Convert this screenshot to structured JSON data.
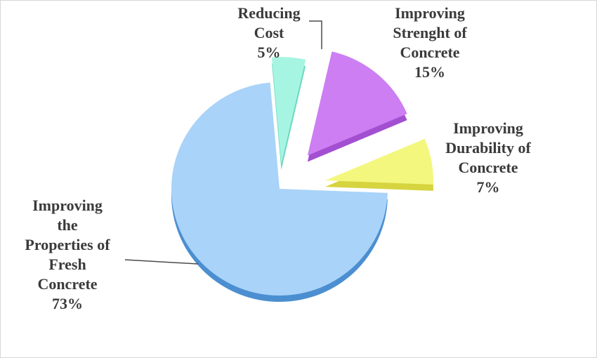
{
  "chart_data": {
    "type": "pie",
    "style": "3d-exploded",
    "slices": [
      {
        "label_lines": [
          "Reducing",
          "Cost"
        ],
        "percent_label": "5%",
        "value": 5,
        "color": "#a6f5e2",
        "side_color": "#6fd9c0"
      },
      {
        "label_lines": [
          "Improving",
          "Strenght of",
          "Concrete"
        ],
        "percent_label": "15%",
        "value": 15,
        "color": "#cc7ef2",
        "side_color": "#a34fd1"
      },
      {
        "label_lines": [
          "Improving",
          "Durability  of",
          "Concrete"
        ],
        "percent_label": "7%",
        "value": 7,
        "color": "#f4f77e",
        "side_color": "#d6d43f"
      },
      {
        "label_lines": [
          "Improving",
          "the",
          "Properties of",
          "Fresh",
          "Concrete"
        ],
        "percent_label": "73%",
        "value": 73,
        "color": "#a9d3f8",
        "side_color": "#4b8fd0"
      }
    ]
  }
}
